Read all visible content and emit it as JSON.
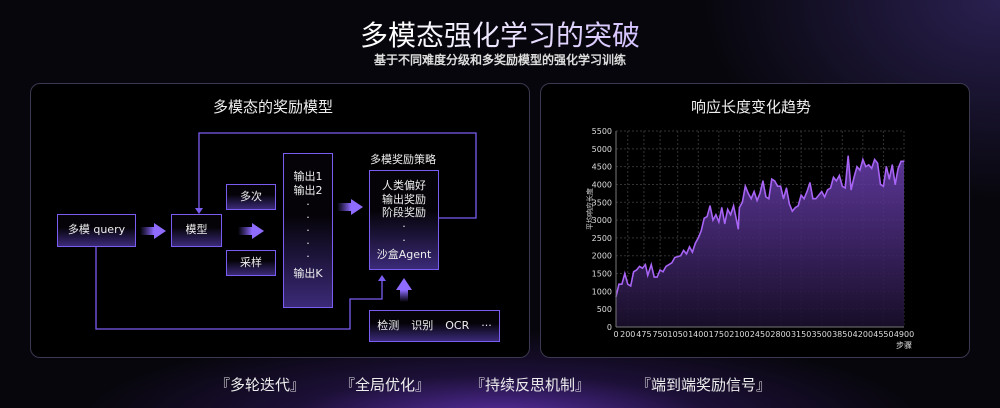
{
  "header": {
    "title": "多模态强化学习的突破",
    "subtitle": "基于不同难度分级和多奖励模型的强化学习训练"
  },
  "left_panel": {
    "title": "多模态的奖励模型",
    "diagram": {
      "query": "多模 query",
      "model": "模型",
      "multi": "多次",
      "sample": "采样",
      "outputs": {
        "first": "输出1",
        "second": "输出2",
        "dots": "·",
        "last": "输出K"
      },
      "policy_label": "多模奖励策略",
      "policy": {
        "items": [
          "人类偏好",
          "输出奖励",
          "阶段奖励"
        ],
        "dots": "·",
        "last": "沙盒Agent"
      },
      "tools": [
        "检测",
        "识别",
        "OCR",
        "···"
      ]
    }
  },
  "right_panel": {
    "title": "响应长度变化趋势"
  },
  "chart_data": {
    "type": "area",
    "title": "响应长度变化趋势",
    "xlabel": "步骤",
    "ylabel": "平均响应长度",
    "xlim": [
      0,
      4900
    ],
    "ylim": [
      0,
      5500
    ],
    "grid": true,
    "color": "#a764f5",
    "xticks": [
      0,
      200,
      475,
      750,
      1050,
      1400,
      1750,
      2100,
      2450,
      2800,
      3150,
      3500,
      3850,
      4200,
      4550,
      4900
    ],
    "yticks": [
      0,
      500,
      1000,
      1500,
      2000,
      2500,
      3000,
      3500,
      4000,
      4500,
      5000,
      5500
    ],
    "x": [
      0,
      50,
      100,
      150,
      200,
      250,
      300,
      350,
      400,
      450,
      500,
      540,
      600,
      650,
      700,
      750,
      800,
      850,
      950,
      1000,
      1100,
      1150,
      1200,
      1250,
      1300,
      1350,
      1400,
      1450,
      1500,
      1550,
      1600,
      1650,
      1700,
      1750,
      1800,
      1850,
      1900,
      1950,
      2000,
      2050,
      2080,
      2100,
      2150,
      2200,
      2250,
      2300,
      2350,
      2400,
      2450,
      2500,
      2550,
      2600,
      2650,
      2700,
      2750,
      2800,
      2850,
      2900,
      2950,
      3000,
      3050,
      3100,
      3150,
      3200,
      3250,
      3300,
      3350,
      3400,
      3500,
      3550,
      3600,
      3650,
      3700,
      3750,
      3800,
      3850,
      3900,
      3950,
      4000,
      4050,
      4100,
      4150,
      4200,
      4250,
      4300,
      4350,
      4400,
      4450,
      4500,
      4550,
      4600,
      4650,
      4700,
      4750,
      4800,
      4850,
      4900
    ],
    "y": [
      850,
      1200,
      1200,
      1500,
      1200,
      1150,
      1550,
      1600,
      1700,
      1650,
      1750,
      1450,
      1750,
      1400,
      1400,
      1600,
      1550,
      1700,
      1800,
      1950,
      2000,
      2150,
      2050,
      2250,
      2100,
      2350,
      2500,
      2700,
      3050,
      3100,
      3400,
      3000,
      3150,
      2950,
      3350,
      2900,
      3300,
      3150,
      3400,
      3000,
      2750,
      3350,
      3500,
      3950,
      3750,
      3600,
      3800,
      3550,
      3750,
      4100,
      3650,
      3600,
      4150,
      4100,
      3950,
      3950,
      3600,
      3900,
      3450,
      3250,
      3350,
      3400,
      3700,
      3600,
      3800,
      4050,
      3600,
      3600,
      3800,
      3650,
      3850,
      3900,
      4200,
      4100,
      4250,
      3950,
      3900,
      4800,
      3850,
      4200,
      4500,
      4400,
      4700,
      4500,
      4550,
      4450,
      4700,
      4600,
      4000,
      3950,
      4500,
      4150,
      4550,
      4000,
      4450,
      4650,
      4650
    ]
  },
  "footer": {
    "tags": [
      "『多轮迭代』",
      "『全局优化』",
      "『持续反思机制』",
      "『端到端奖励信号』"
    ]
  }
}
